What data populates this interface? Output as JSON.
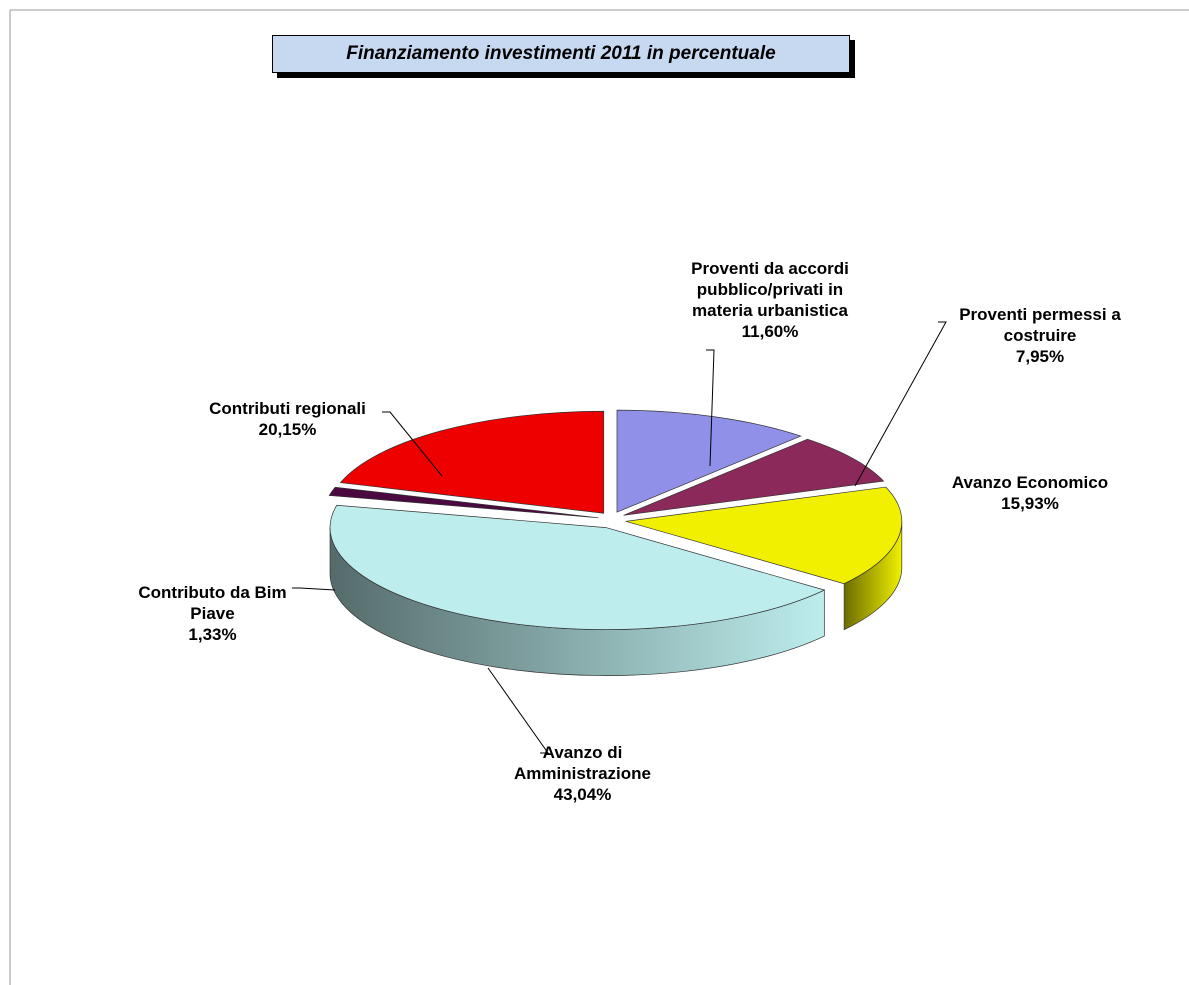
{
  "chart_data": {
    "type": "pie3d",
    "title": "Finanziamento investimenti 2011  in percentuale",
    "categories": [
      "Proventi da accordi pubblico/privati in materia urbanistica",
      "Proventi permessi a costruire",
      "Avanzo Economico",
      "Avanzo di Amministrazione",
      "Contributo da Bim Piave",
      "Contributi regionali"
    ],
    "values": [
      11.6,
      7.95,
      15.93,
      43.04,
      1.33,
      20.15
    ],
    "value_labels": [
      "11,60%",
      "7,95%",
      "15,93%",
      "43,04%",
      "1,33%",
      "20,15%"
    ],
    "colors": [
      "#9090e8",
      "#8b2a5a",
      "#f0f000",
      "#bdeded",
      "#4a0a40",
      "#ee0000"
    ]
  }
}
